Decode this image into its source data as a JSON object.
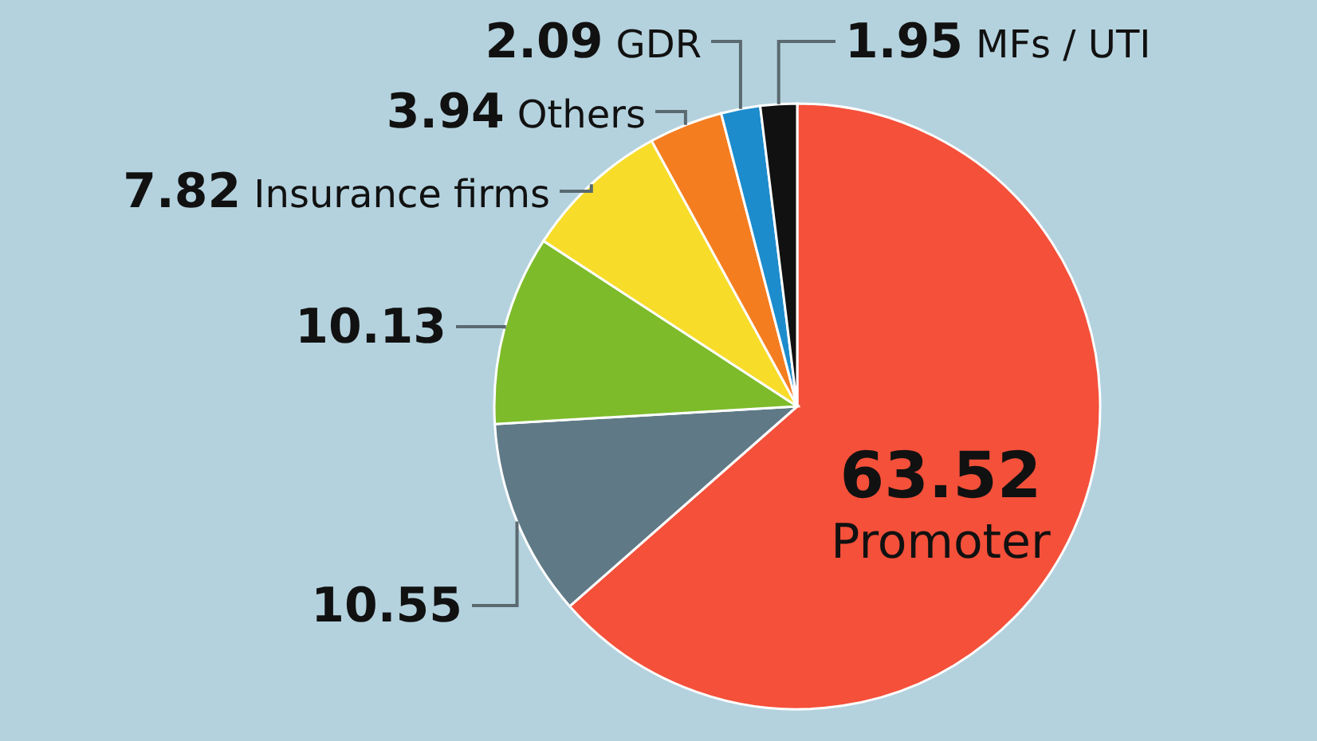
{
  "chart_data": {
    "type": "pie",
    "categories": [
      "Promoter",
      null,
      null,
      "Insurance firms",
      "Others",
      "GDR",
      "MFs / UTI"
    ],
    "values": [
      63.52,
      10.55,
      10.13,
      7.82,
      3.94,
      2.09,
      1.95
    ],
    "colors": [
      "#f4503a",
      "#5f7a86",
      "#7dbb2b",
      "#f7dc2a",
      "#f47d20",
      "#1d8ccc",
      "#111111"
    ],
    "data_labels": true
  }
}
